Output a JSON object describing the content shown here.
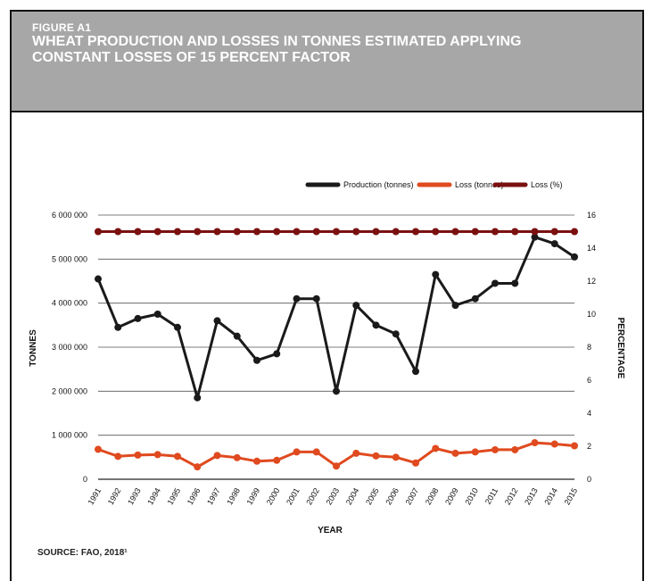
{
  "figure": {
    "label": "FIGURE A1",
    "title": "WHEAT PRODUCTION AND LOSSES IN TONNES ESTIMATED APPLYING CONSTANT LOSSES OF 15 PERCENT FACTOR",
    "source": "SOURCE: FAO, 2018¹"
  },
  "chart_data": {
    "type": "line",
    "xlabel": "YEAR",
    "ylabel_left": "TONNES",
    "ylabel_right": "PERCENTAGE",
    "ylim_left": [
      0,
      6000000
    ],
    "ylim_right": [
      0,
      16
    ],
    "left_ticks": [
      0,
      1000000,
      2000000,
      3000000,
      4000000,
      5000000,
      6000000
    ],
    "left_tick_labels": [
      "0",
      "1 000 000",
      "2 000 000",
      "3 000 000",
      "4 000 000",
      "5 000 000",
      "6 000 000"
    ],
    "right_ticks": [
      0,
      2,
      4,
      6,
      8,
      10,
      12,
      14,
      16
    ],
    "right_tick_labels": [
      "0",
      "2",
      "4",
      "6",
      "8",
      "10",
      "12",
      "14",
      "16"
    ],
    "grid": true,
    "legend_position": "top-right",
    "categories": [
      "1991",
      "1992",
      "1993",
      "1994",
      "1995",
      "1996",
      "1997",
      "1998",
      "1999",
      "2000",
      "2001",
      "2002",
      "2003",
      "2004",
      "2005",
      "2006",
      "2007",
      "2008",
      "2009",
      "2010",
      "2011",
      "2012",
      "2013",
      "2014",
      "2015"
    ],
    "series": [
      {
        "name": "Production (tonnes)",
        "axis": "left",
        "color": "#1a1a1a",
        "values": [
          4550000,
          3450000,
          3650000,
          3750000,
          3450000,
          1850000,
          3600000,
          3250000,
          2700000,
          2850000,
          4100000,
          4100000,
          2000000,
          3950000,
          3500000,
          3300000,
          2450000,
          4650000,
          3950000,
          4100000,
          4450000,
          4450000,
          5500000,
          5350000,
          5050000
        ]
      },
      {
        "name": "Loss (tonnes)",
        "axis": "left",
        "color": "#e04a1f",
        "values": [
          680000,
          520000,
          550000,
          560000,
          520000,
          280000,
          540000,
          490000,
          410000,
          430000,
          620000,
          620000,
          300000,
          590000,
          530000,
          500000,
          370000,
          700000,
          590000,
          620000,
          670000,
          670000,
          830000,
          800000,
          760000
        ]
      },
      {
        "name": "Loss (%)",
        "axis": "right",
        "color": "#7a1010",
        "values": [
          15,
          15,
          15,
          15,
          15,
          15,
          15,
          15,
          15,
          15,
          15,
          15,
          15,
          15,
          15,
          15,
          15,
          15,
          15,
          15,
          15,
          15,
          15,
          15,
          15
        ]
      }
    ]
  }
}
